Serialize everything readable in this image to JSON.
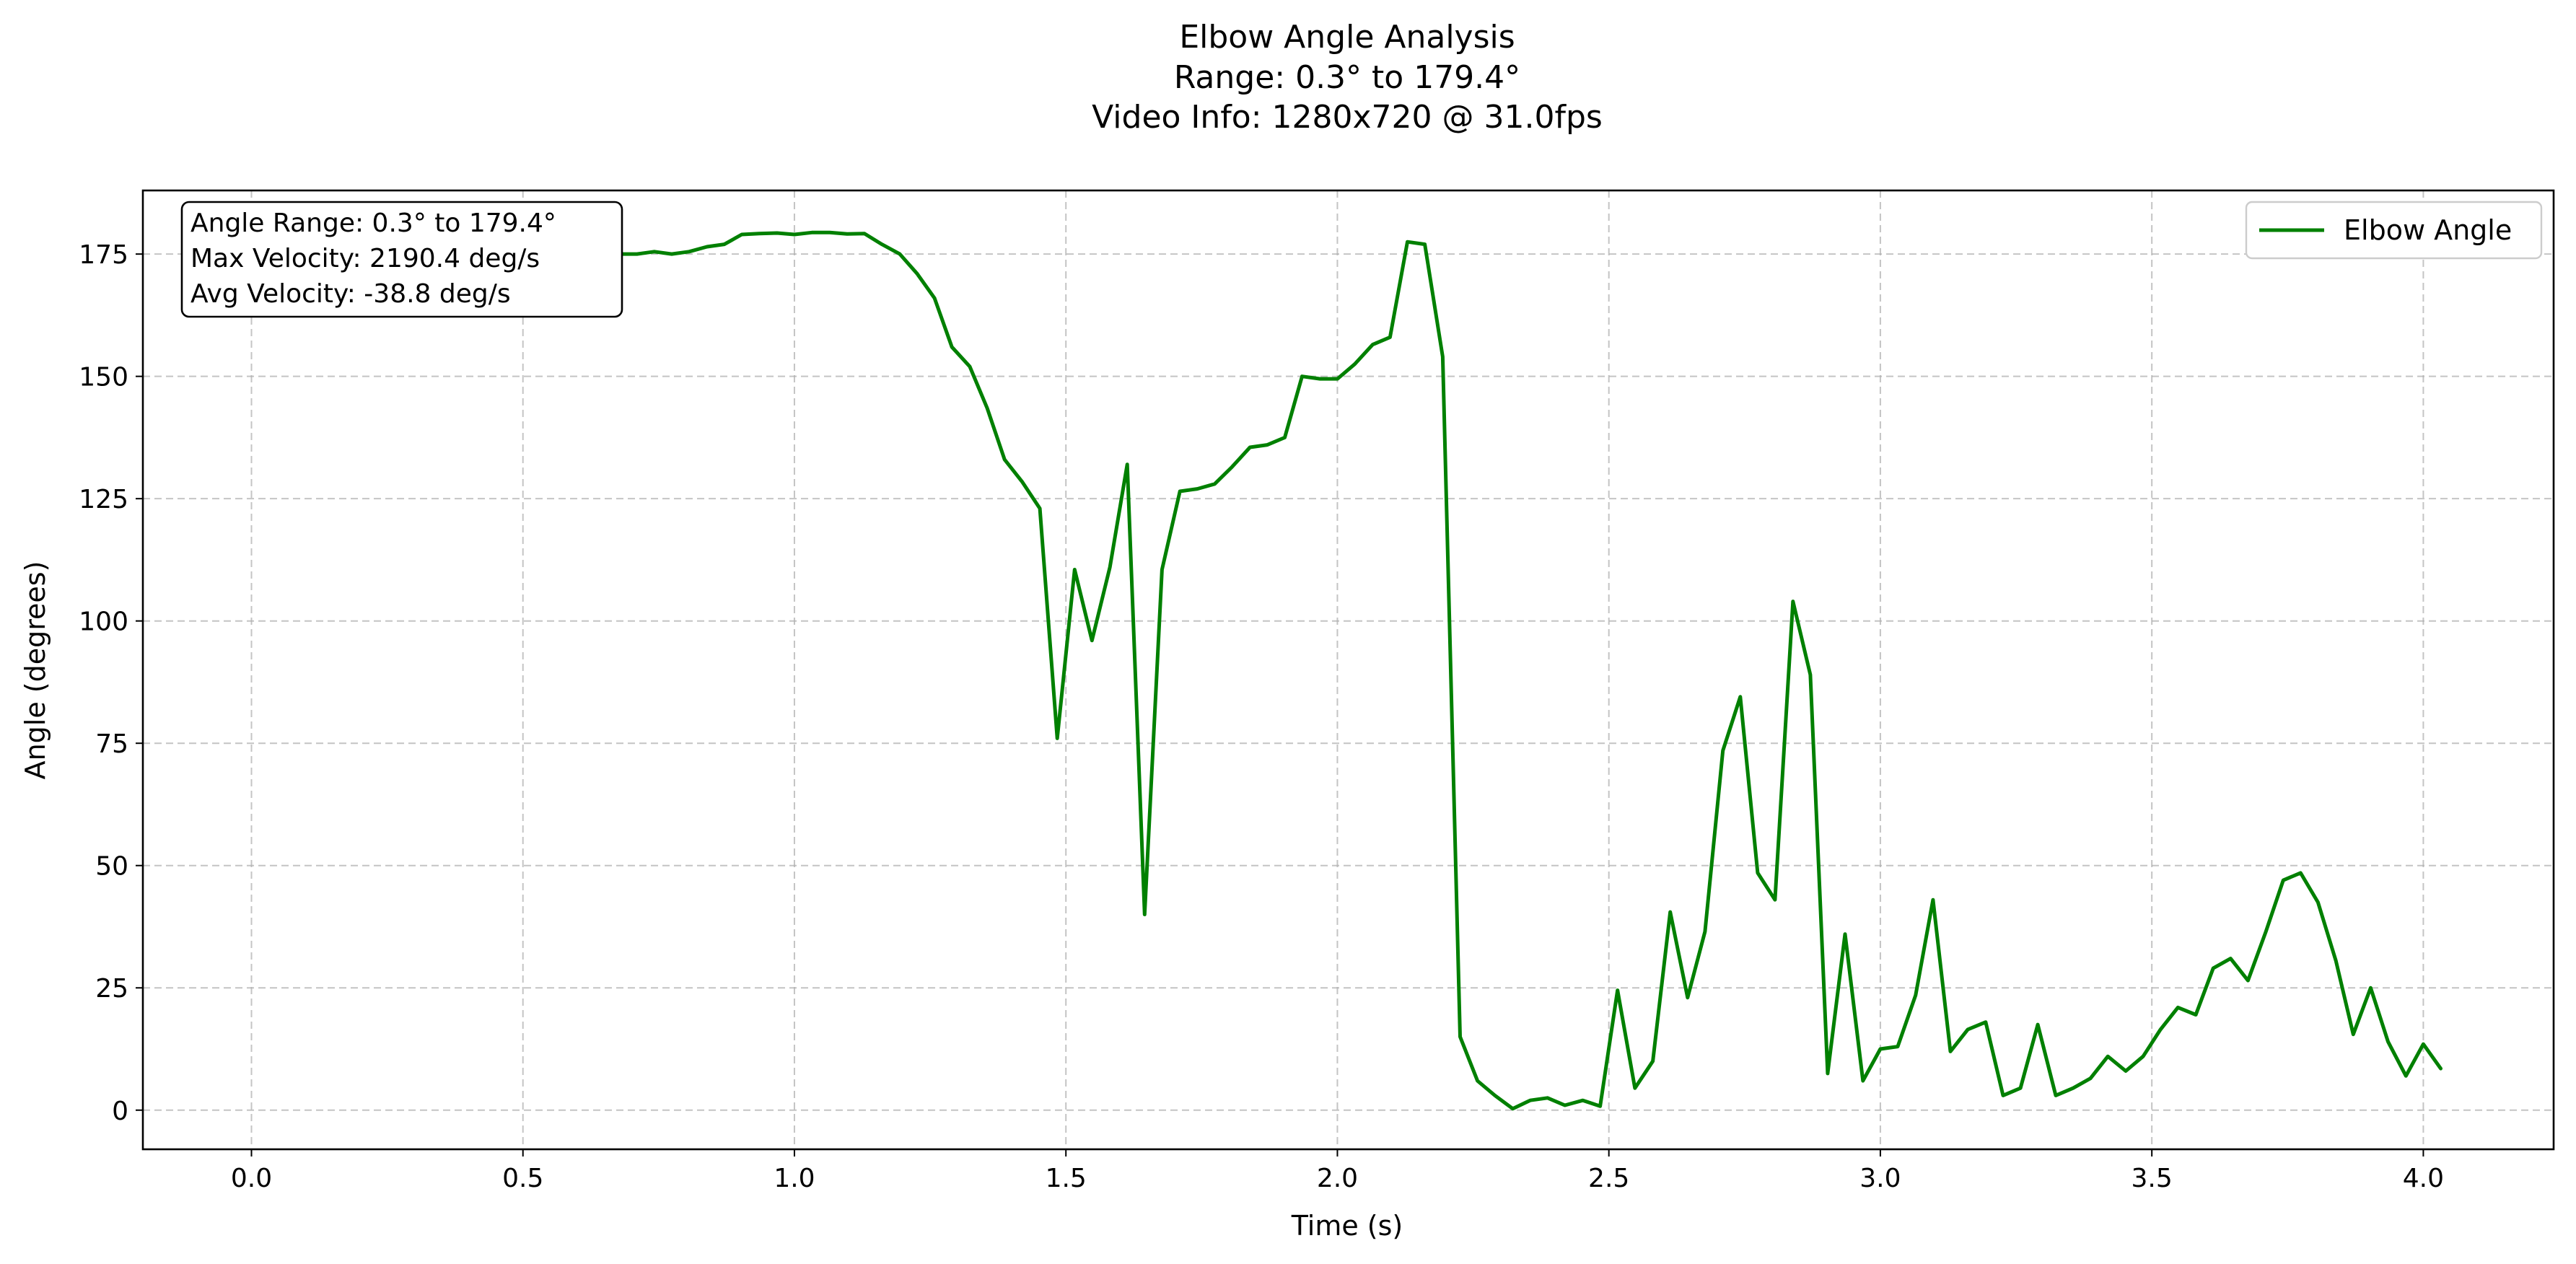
{
  "chart_data": {
    "type": "line",
    "title_lines": [
      "Elbow Angle Analysis",
      "Range: 0.3° to 179.4°",
      "Video Info: 1280x720 @ 31.0fps"
    ],
    "xlabel": "Time (s)",
    "ylabel": "Angle (degrees)",
    "xlim": [
      -0.2,
      4.24
    ],
    "ylim": [
      -8,
      188
    ],
    "xticks": [
      0.0,
      0.5,
      1.0,
      1.5,
      2.0,
      2.5,
      3.0,
      3.5,
      4.0
    ],
    "xtick_labels": [
      "0.0",
      "0.5",
      "1.0",
      "1.5",
      "2.0",
      "2.5",
      "3.0",
      "3.5",
      "4.0"
    ],
    "yticks": [
      0,
      25,
      50,
      75,
      100,
      125,
      150,
      175
    ],
    "ytick_labels": [
      "0",
      "25",
      "50",
      "75",
      "100",
      "125",
      "150",
      "175"
    ],
    "grid": true,
    "legend_position": "top-right",
    "annotation_lines": [
      "Angle Range: 0.3° to 179.4°",
      "Max Velocity: 2190.4 deg/s",
      "Avg Velocity: -38.8 deg/s"
    ],
    "series": [
      {
        "name": "Elbow Angle",
        "color": "#008000",
        "x": [
          0.0,
          0.032,
          0.065,
          0.097,
          0.129,
          0.161,
          0.194,
          0.226,
          0.258,
          0.29,
          0.323,
          0.355,
          0.387,
          0.419,
          0.452,
          0.484,
          0.516,
          0.548,
          0.581,
          0.613,
          0.645,
          0.677,
          0.71,
          0.742,
          0.774,
          0.806,
          0.839,
          0.871,
          0.903,
          0.935,
          0.968,
          1.0,
          1.032,
          1.065,
          1.097,
          1.129,
          1.161,
          1.194,
          1.226,
          1.258,
          1.29,
          1.323,
          1.355,
          1.387,
          1.419,
          1.452,
          1.484,
          1.516,
          1.548,
          1.581,
          1.613,
          1.645,
          1.677,
          1.71,
          1.742,
          1.774,
          1.806,
          1.839,
          1.871,
          1.903,
          1.935,
          1.968,
          2.0,
          2.032,
          2.065,
          2.097,
          2.129,
          2.161,
          2.194,
          2.226,
          2.258,
          2.29,
          2.323,
          2.355,
          2.387,
          2.419,
          2.452,
          2.484,
          2.516,
          2.548,
          2.581,
          2.613,
          2.645,
          2.677,
          2.71,
          2.742,
          2.774,
          2.806,
          2.839,
          2.871,
          2.903,
          2.935,
          2.968,
          3.0,
          3.032,
          3.065,
          3.097,
          3.129,
          3.161,
          3.194,
          3.226,
          3.258,
          3.29,
          3.323,
          3.355,
          3.387,
          3.419,
          3.452,
          3.484,
          3.516,
          3.548,
          3.581,
          3.613,
          3.645,
          3.677,
          3.71,
          3.742,
          3.774,
          3.806,
          3.839,
          3.871,
          3.903,
          3.935,
          3.968,
          4.0,
          4.032
        ],
        "values": [
          166,
          167,
          167.5,
          168,
          168.5,
          169,
          169.5,
          169,
          169.5,
          170,
          171,
          171.5,
          172,
          172.5,
          173,
          173.5,
          173.5,
          174,
          174.5,
          174,
          174.5,
          175,
          175,
          175.5,
          175,
          175.5,
          176.5,
          177,
          179,
          179.2,
          179.3,
          179,
          179.4,
          179.4,
          179.1,
          179.2,
          177,
          175,
          171,
          166,
          156,
          152,
          143.5,
          133,
          128.5,
          123,
          76,
          110.5,
          96,
          111,
          132,
          40,
          110.5,
          126.5,
          127,
          128,
          131.5,
          135.5,
          136,
          137.5,
          150,
          149.5,
          149.5,
          152.5,
          156.5,
          158,
          177.5,
          177,
          154,
          15,
          6,
          3,
          0.3,
          2,
          2.5,
          1,
          2,
          0.8,
          24.5,
          4.5,
          10,
          40.5,
          23,
          36.5,
          73.5,
          84.5,
          48.5,
          43,
          104,
          89,
          7.5,
          36,
          6,
          12.5,
          13,
          23.5,
          43,
          12,
          16.5,
          18,
          3,
          4.5,
          17.5,
          3,
          4.5,
          6.5,
          11,
          8,
          11,
          16.5,
          21,
          19.5,
          29,
          31,
          26.5,
          36.5,
          47,
          48.5,
          42.5,
          30.5,
          15.5,
          25,
          14,
          7,
          13.5,
          8.5
        ]
      }
    ]
  }
}
